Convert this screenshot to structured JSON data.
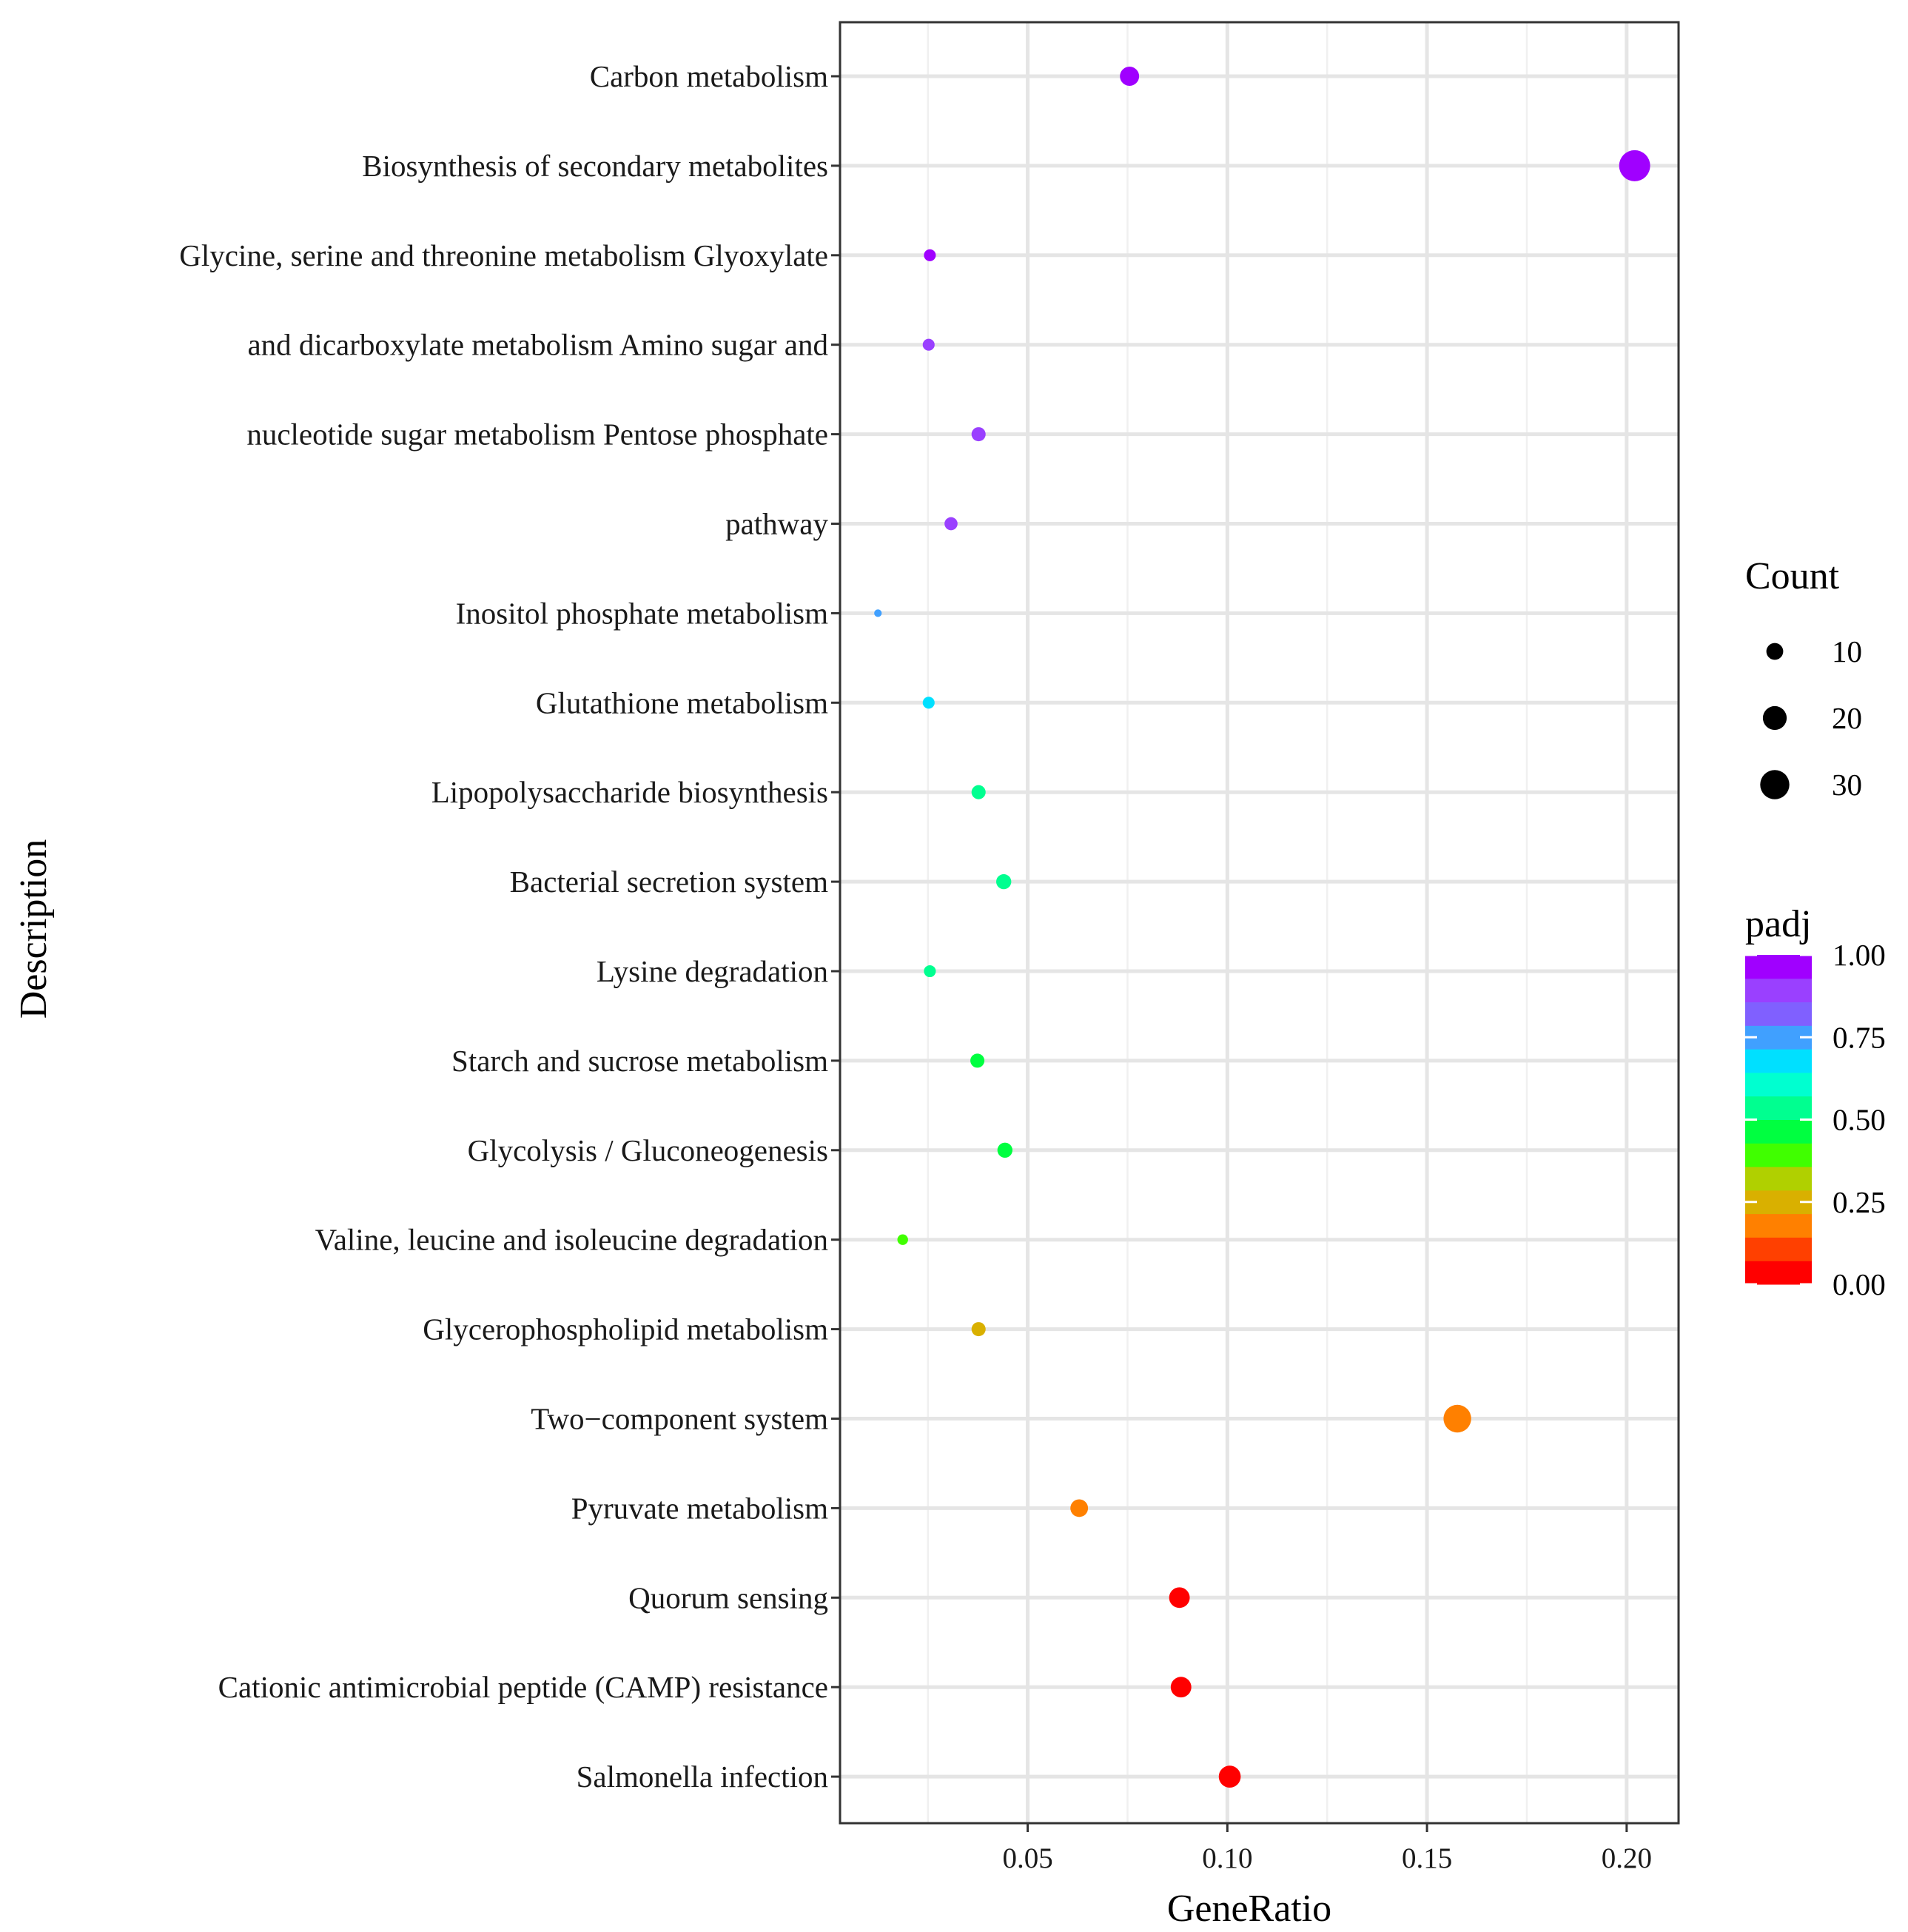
{
  "chart_data": {
    "type": "scatter",
    "xlabel": "GeneRatio",
    "ylabel": "Description",
    "xlim": [
      0.003,
      0.213
    ],
    "x_ticks": [
      {
        "value": 0.05,
        "label": "0.05"
      },
      {
        "value": 0.1,
        "label": "0.10"
      },
      {
        "value": 0.15,
        "label": "0.15"
      },
      {
        "value": 0.2,
        "label": "0.20"
      }
    ],
    "grid": true,
    "categories": [
      "Carbon metabolism",
      "Biosynthesis of secondary metabolites",
      "Glycine, serine and threonine metabolism Glyoxylate",
      "and dicarboxylate metabolism Amino sugar and",
      "nucleotide sugar metabolism Pentose phosphate",
      "pathway",
      "Inositol phosphate metabolism",
      "Glutathione metabolism",
      "Lipopolysaccharide biosynthesis",
      "Bacterial secretion system",
      "Lysine degradation",
      "Starch and sucrose metabolism",
      "Glycolysis / Gluconeogenesis",
      "Valine, leucine and isoleucine degradation",
      "Glycerophospholipid metabolism",
      "Two−component system",
      "Pyruvate metabolism",
      "Quorum sensing",
      "Cationic antimicrobial peptide (CAMP) resistance",
      "Salmonella infection"
    ],
    "points": [
      {
        "category": "Carbon metabolism",
        "x": 0.0755,
        "count": 13,
        "padj": 0.98
      },
      {
        "category": "Biosynthesis of secondary metabolites",
        "x": 0.202,
        "count": 34,
        "padj": 1.0
      },
      {
        "category": "Glycine, serine and threonine metabolism Glyoxylate",
        "x": 0.0255,
        "count": 5,
        "padj": 0.97
      },
      {
        "category": "and dicarboxylate metabolism Amino sugar and",
        "x": 0.0252,
        "count": 5,
        "padj": 0.92
      },
      {
        "category": "nucleotide sugar metabolism Pentose phosphate",
        "x": 0.0377,
        "count": 7,
        "padj": 0.91
      },
      {
        "category": "pathway",
        "x": 0.0308,
        "count": 6,
        "padj": 0.9
      },
      {
        "category": "Inositol phosphate metabolism",
        "x": 0.0125,
        "count": 2,
        "padj": 0.78
      },
      {
        "category": "Glutathione metabolism",
        "x": 0.0252,
        "count": 5,
        "padj": 0.68
      },
      {
        "category": "Lipopolysaccharide biosynthesis",
        "x": 0.0377,
        "count": 7,
        "padj": 0.55
      },
      {
        "category": "Bacterial secretion system",
        "x": 0.044,
        "count": 8,
        "padj": 0.53
      },
      {
        "category": "Lysine degradation",
        "x": 0.0255,
        "count": 5,
        "padj": 0.52
      },
      {
        "category": "Starch and sucrose metabolism",
        "x": 0.0374,
        "count": 7,
        "padj": 0.49
      },
      {
        "category": "Glycolysis / Gluconeogenesis",
        "x": 0.0443,
        "count": 8,
        "padj": 0.45
      },
      {
        "category": "Valine, leucine and isoleucine degradation",
        "x": 0.0187,
        "count": 4,
        "padj": 0.38
      },
      {
        "category": "Glycerophospholipid metabolism",
        "x": 0.0377,
        "count": 7,
        "padj": 0.28
      },
      {
        "category": "Two−component system",
        "x": 0.1576,
        "count": 27,
        "padj": 0.21
      },
      {
        "category": "Pyruvate metabolism",
        "x": 0.0629,
        "count": 11,
        "padj": 0.18
      },
      {
        "category": "Quorum sensing",
        "x": 0.088,
        "count": 15,
        "padj": 0.06
      },
      {
        "category": "Cationic antimicrobial peptide (CAMP) resistance",
        "x": 0.0884,
        "count": 15,
        "padj": 0.02
      },
      {
        "category": "Salmonella infection",
        "x": 0.1006,
        "count": 17,
        "padj": 0.01
      }
    ],
    "legend_count": {
      "title": "Count",
      "entries": [
        {
          "label": "10",
          "value": 10
        },
        {
          "label": "20",
          "value": 20
        },
        {
          "label": "30",
          "value": 30
        }
      ]
    },
    "legend_padj": {
      "title": "padj",
      "range": [
        0.0,
        1.0
      ],
      "ticks": [
        {
          "value": 1.0,
          "label": "1.00"
        },
        {
          "value": 0.75,
          "label": "0.75"
        },
        {
          "value": 0.5,
          "label": "0.50"
        },
        {
          "value": 0.25,
          "label": "0.25"
        },
        {
          "value": 0.0,
          "label": "0.00"
        }
      ],
      "colors": [
        "#ff0000",
        "#ff4000",
        "#ff8000",
        "#d9b000",
        "#b0d000",
        "#40ff00",
        "#00ff40",
        "#00ff90",
        "#00ffd0",
        "#00e0ff",
        "#40a0ff",
        "#8060ff",
        "#9a40ff",
        "#a000ff"
      ]
    },
    "legend_placement": "right"
  }
}
